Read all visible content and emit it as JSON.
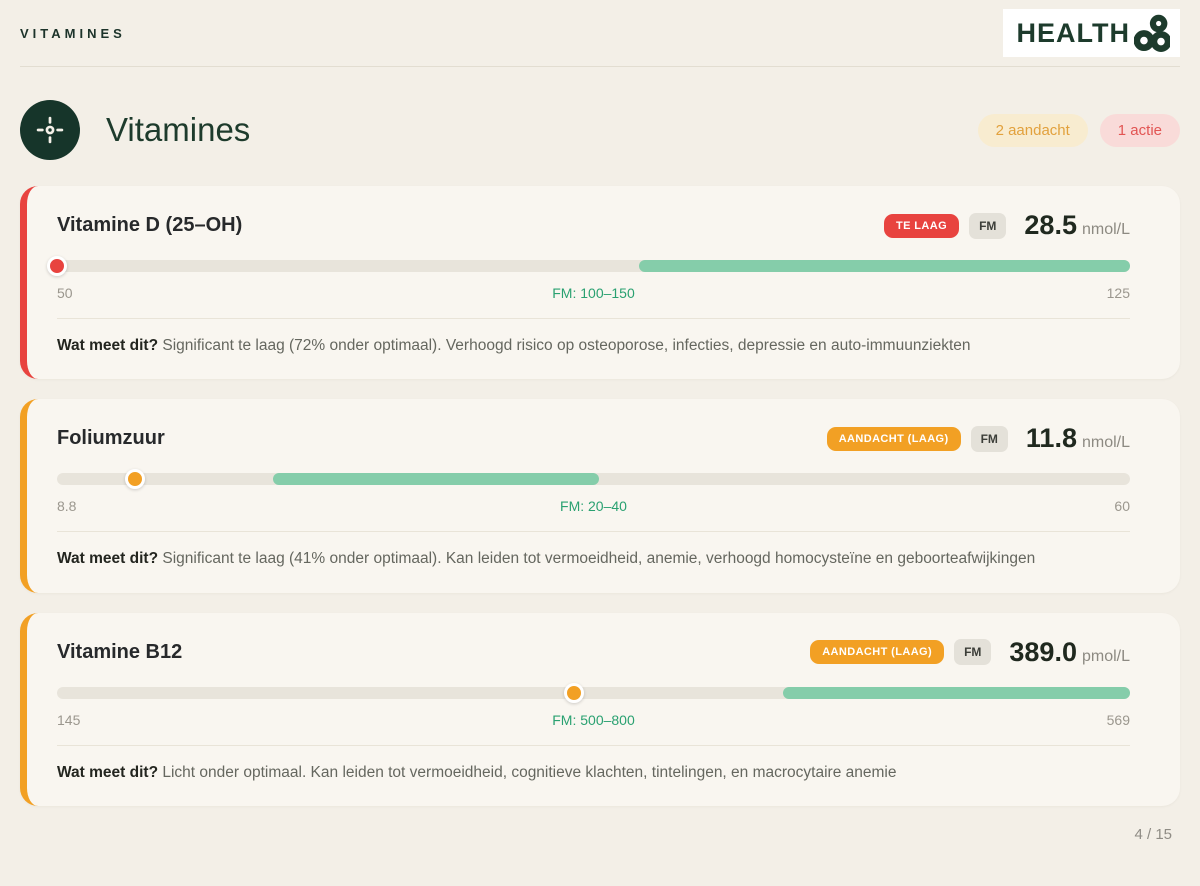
{
  "page": {
    "nav_label": "VITAMINES",
    "brand": "HEALTH",
    "title": "Vitamines",
    "attention_badge": "2 aandacht",
    "action_badge": "1 actie",
    "page_indicator": "4 / 15"
  },
  "colors": {
    "background": "#f3efe7",
    "card_background": "#f9f6f0",
    "dark_green": "#1d3b2c",
    "optimal_band_green": "#85cdaa",
    "range_text_green": "#2aa171",
    "low_red": "#e8433f",
    "attention_orange": "#f2a024"
  },
  "cards": [
    {
      "name": "Vitamine D (25–OH)",
      "status": "TE LAAG",
      "method": "FM",
      "value": "28.5",
      "unit": "nmol/L",
      "scale_min": "50",
      "scale_max": "125",
      "optimal_range_label": "FM: 100–150",
      "marker_pct": 0,
      "band_start_pct": 54.2,
      "band_end_pct": 100,
      "accent": "#e8433f",
      "description_label": "Wat meet dit?",
      "description": "Significant te laag (72% onder optimaal). Verhoogd risico op osteoporose, infecties, depressie en auto-immuunziekten"
    },
    {
      "name": "Foliumzuur",
      "status": "AANDACHT (LAAG)",
      "method": "FM",
      "value": "11.8",
      "unit": "nmol/L",
      "scale_min": "8.8",
      "scale_max": "60",
      "optimal_range_label": "FM: 20–40",
      "marker_pct": 7.3,
      "band_start_pct": 20.1,
      "band_end_pct": 50.5,
      "accent": "#f2a024",
      "description_label": "Wat meet dit?",
      "description": "Significant te laag (41% onder optimaal). Kan leiden tot vermoeidheid, anemie, verhoogd homocysteïne en geboorteafwijkingen"
    },
    {
      "name": "Vitamine B12",
      "status": "AANDACHT (LAAG)",
      "method": "FM",
      "value": "389.0",
      "unit": "pmol/L",
      "scale_min": "145",
      "scale_max": "569",
      "optimal_range_label": "FM: 500–800",
      "marker_pct": 48.2,
      "band_start_pct": 67.7,
      "band_end_pct": 100,
      "accent": "#f2a024",
      "description_label": "Wat meet dit?",
      "description": "Licht onder optimaal. Kan leiden tot vermoeidheid, cognitieve klachten, tintelingen, en macrocytaire anemie"
    }
  ]
}
